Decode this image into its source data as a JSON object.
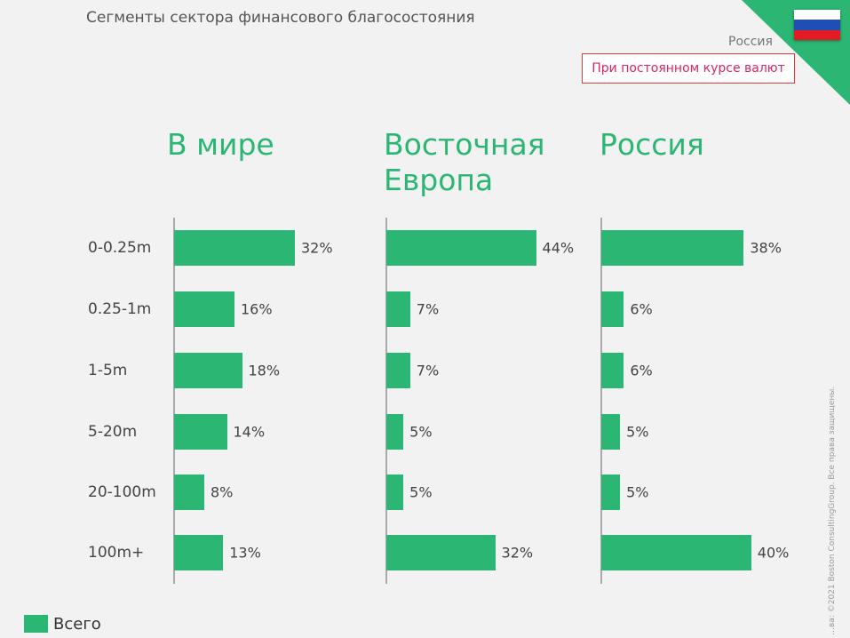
{
  "header": {
    "title": "Сегменты сектора финансового благосостояния",
    "region": "Россия",
    "note": "При постоянном курсе валют"
  },
  "colors": {
    "accent": "#2bb673",
    "note_border": "#e53935",
    "flag": [
      "#ffffff",
      "#1f4fb5",
      "#e31b23"
    ]
  },
  "legend": {
    "label": "Всего"
  },
  "copyright": "…ва: ©2021 Boston ConsultingGroup. Все права защищены.",
  "chart_data": {
    "type": "bar",
    "title": "Сегменты сектора финансового благосостояния",
    "categories": [
      "0-0.25m",
      "0.25-1m",
      "1-5m",
      "5-20m",
      "20-100m",
      "100m+"
    ],
    "series": [
      {
        "name": "В мире",
        "values": [
          32,
          16,
          18,
          14,
          8,
          13
        ],
        "labels": [
          "32%",
          "16%",
          "18%",
          "14%",
          "8%",
          "13%"
        ]
      },
      {
        "name": "Восточная Европа",
        "values": [
          44,
          7,
          7,
          5,
          5,
          32
        ],
        "labels": [
          "44%",
          "7%",
          "7%",
          "5%",
          "5%",
          "32%"
        ]
      },
      {
        "name": "Россия",
        "values": [
          38,
          6,
          6,
          5,
          5,
          40
        ],
        "labels": [
          "38%",
          "6%",
          "6%",
          "5%",
          "5%",
          "40%"
        ]
      }
    ],
    "unit": "%",
    "legend": "bottom-left"
  }
}
